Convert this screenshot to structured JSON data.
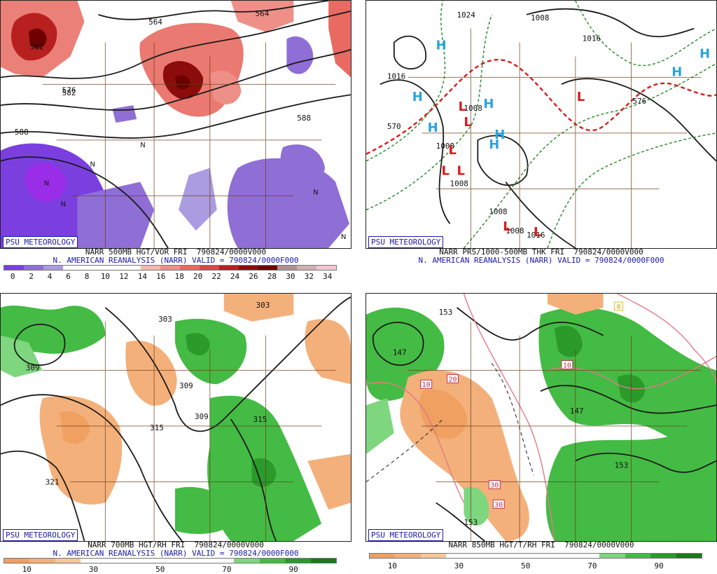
{
  "panels": [
    {
      "badge": "PSU METEOROLOGY",
      "caption1": "NARR 500MB HGT/VOR FRI  790824/0000V000",
      "caption2": "N. AMERICAN REANALYSIS (NARR) VALID = 790824/0000F000",
      "colorbar_colors": [
        "#7b3fe0",
        "#8f6ed6",
        "#ab9be0",
        "#ffffff",
        "#ffffff",
        "#ffffff",
        "#ffffff",
        "#f4b8b0",
        "#ee9088",
        "#e86a62",
        "#d84848",
        "#b82020",
        "#8c0c0c",
        "#6e0000",
        "#b09090",
        "#d0b0b0",
        "#f0c8d0"
      ],
      "colorbar_labels": [
        "0",
        "2",
        "4",
        "6",
        "8",
        "10",
        "12",
        "14",
        "16",
        "18",
        "20",
        "22",
        "24",
        "26",
        "28",
        "30",
        "32",
        "34"
      ],
      "map_labels": [
        "582",
        "576",
        "588",
        "588",
        "564",
        "564",
        "582"
      ]
    },
    {
      "badge": "PSU METEOROLOGY",
      "caption1": "NARR PRS/1000-500MB THK FRI  790824/0000V000",
      "caption2": "N. AMERICAN REANALYSIS (NARR) VALID = 790824/0000F000",
      "colorbar_colors": [],
      "colorbar_labels": [],
      "map_labels": [
        "1024",
        "1008",
        "1016",
        "1016",
        "1008",
        "1008",
        "1008",
        "1008",
        "1008",
        "1016",
        "570",
        "576"
      ]
    },
    {
      "badge": "PSU METEOROLOGY",
      "caption1": "NARR 700MB HGT/RH FRI  790824/0000V000",
      "caption2": "N. AMERICAN REANALYSIS (NARR) VALID = 790824/0000F000",
      "colorbar_colors": [
        "#f0a060",
        "#f4b07a",
        "#f8c698",
        "#ffffff",
        "#ffffff",
        "#ffffff",
        "#ffffff",
        "#ffffff",
        "#ffffff",
        "#7ed67e",
        "#44bb44",
        "#2a9a2a",
        "#1a7a1a"
      ],
      "colorbar_labels": [
        "10",
        "30",
        "50",
        "70",
        "90"
      ],
      "map_labels": [
        "309",
        "303",
        "303",
        "309",
        "309",
        "315",
        "315",
        "321"
      ]
    },
    {
      "badge": "PSU METEOROLOGY",
      "caption1": "NARR 850MB HGT/T/RH FRI  790824/0000V000",
      "caption2": "",
      "colorbar_colors": [
        "#f0a060",
        "#f4b07a",
        "#f8c698",
        "#ffffff",
        "#ffffff",
        "#ffffff",
        "#ffffff",
        "#ffffff",
        "#ffffff",
        "#7ed67e",
        "#44bb44",
        "#2a9a2a",
        "#1a7a1a"
      ],
      "colorbar_labels": [
        "10",
        "30",
        "50",
        "70",
        "90"
      ],
      "map_labels": [
        "153",
        "147",
        "147",
        "153",
        "153",
        "10",
        "20",
        "10",
        "30",
        "30",
        "0"
      ]
    }
  ],
  "highs_lows": {
    "H": "H",
    "L": "L",
    "N": "N"
  }
}
